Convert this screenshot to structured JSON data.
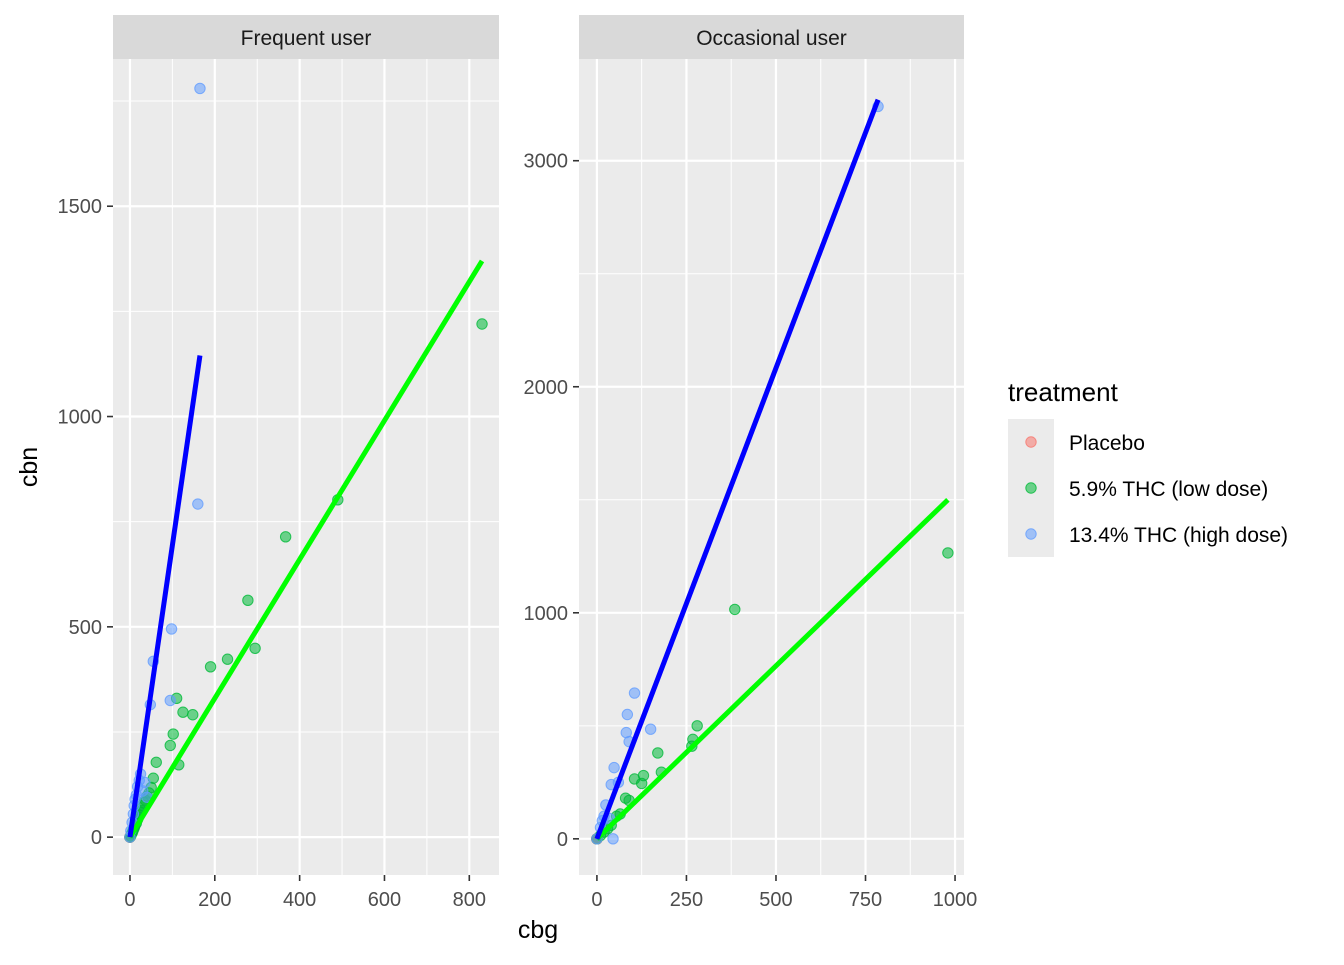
{
  "chart_data": {
    "type": "scatter",
    "facet_variable": "user group",
    "xlabel": "cbg",
    "ylabel": "cbn",
    "legend": {
      "title": "treatment",
      "placement": "right",
      "entries": [
        {
          "name": "Placebo",
          "color": "#F8766D"
        },
        {
          "name": "5.9% THC (low dose)",
          "color": "#00BA38"
        },
        {
          "name": "13.4% THC (high dose)",
          "color": "#619CFF"
        }
      ]
    },
    "grid": true,
    "panels": [
      {
        "title": "Frequent user",
        "xlim": [
          -40,
          870
        ],
        "ylim": [
          -90,
          1850
        ],
        "xticks": [
          0,
          200,
          400,
          600,
          800
        ],
        "yticks": [
          0,
          500,
          1000,
          1500
        ],
        "series": [
          {
            "name": "Placebo",
            "points": [
              [
                0,
                0
              ],
              [
                0,
                0
              ],
              [
                0,
                0
              ],
              [
                0,
                0
              ],
              [
                0,
                0
              ]
            ]
          },
          {
            "name": "5.9% THC (low dose)",
            "points": [
              [
                0,
                0
              ],
              [
                2,
                3
              ],
              [
                4,
                8
              ],
              [
                6,
                12
              ],
              [
                8,
                18
              ],
              [
                10,
                22
              ],
              [
                12,
                28
              ],
              [
                15,
                33
              ],
              [
                18,
                42
              ],
              [
                20,
                48
              ],
              [
                22,
                52
              ],
              [
                25,
                58
              ],
              [
                28,
                63
              ],
              [
                30,
                75
              ],
              [
                33,
                82
              ],
              [
                36,
                88
              ],
              [
                40,
                97
              ],
              [
                45,
                105
              ],
              [
                50,
                118
              ],
              [
                55,
                140
              ],
              [
                62,
                178
              ],
              [
                95,
                218
              ],
              [
                102,
                245
              ],
              [
                110,
                330
              ],
              [
                115,
                172
              ],
              [
                125,
                297
              ],
              [
                148,
                291
              ],
              [
                190,
                405
              ],
              [
                230,
                423
              ],
              [
                278,
                563
              ],
              [
                295,
                449
              ],
              [
                367,
                714
              ],
              [
                490,
                802
              ],
              [
                830,
                1220
              ]
            ]
          },
          {
            "name": "13.4% THC (high dose)",
            "points": [
              [
                0,
                0
              ],
              [
                2,
                15
              ],
              [
                5,
                35
              ],
              [
                8,
                55
              ],
              [
                10,
                75
              ],
              [
                12,
                90
              ],
              [
                15,
                100
              ],
              [
                18,
                120
              ],
              [
                22,
                135
              ],
              [
                25,
                150
              ],
              [
                30,
                110
              ],
              [
                35,
                130
              ],
              [
                40,
                95
              ],
              [
                48,
                315
              ],
              [
                55,
                418
              ],
              [
                95,
                325
              ],
              [
                98,
                495
              ],
              [
                160,
                792
              ],
              [
                165,
                1780
              ]
            ]
          }
        ],
        "fits": [
          {
            "series": "5.9% THC (low dose)",
            "color": "#00FF00",
            "x": [
              0,
              830
            ],
            "y": [
              0,
              1370
            ]
          },
          {
            "series": "13.4% THC (high dose)",
            "color": "#0000FF",
            "x": [
              0,
              165
            ],
            "y": [
              0,
              1145
            ]
          }
        ]
      },
      {
        "title": "Occasional user",
        "xlim": [
          -50,
          1025
        ],
        "ylim": [
          -160,
          3450
        ],
        "xticks": [
          0,
          250,
          500,
          750,
          1000
        ],
        "yticks": [
          0,
          1000,
          2000,
          3000
        ],
        "series": [
          {
            "name": "Placebo",
            "points": [
              [
                0,
                0
              ],
              [
                0,
                0
              ],
              [
                0,
                0
              ],
              [
                0,
                0
              ],
              [
                0,
                0
              ],
              [
                0,
                0
              ]
            ]
          },
          {
            "name": "5.9% THC (low dose)",
            "points": [
              [
                0,
                0
              ],
              [
                10,
                15
              ],
              [
                20,
                30
              ],
              [
                30,
                45
              ],
              [
                40,
                60
              ],
              [
                55,
                100
              ],
              [
                65,
                110
              ],
              [
                80,
                180
              ],
              [
                90,
                170
              ],
              [
                105,
                265
              ],
              [
                125,
                245
              ],
              [
                130,
                280
              ],
              [
                170,
                380
              ],
              [
                180,
                295
              ],
              [
                265,
                410
              ],
              [
                268,
                440
              ],
              [
                280,
                500
              ],
              [
                385,
                1015
              ],
              [
                980,
                1265
              ]
            ]
          },
          {
            "name": "13.4% THC (high dose)",
            "points": [
              [
                0,
                0
              ],
              [
                10,
                50
              ],
              [
                15,
                80
              ],
              [
                20,
                100
              ],
              [
                25,
                150
              ],
              [
                35,
                90
              ],
              [
                40,
                240
              ],
              [
                45,
                0
              ],
              [
                48,
                315
              ],
              [
                60,
                250
              ],
              [
                82,
                470
              ],
              [
                85,
                550
              ],
              [
                90,
                430
              ],
              [
                105,
                645
              ],
              [
                150,
                485
              ],
              [
                785,
                3240
              ]
            ]
          }
        ],
        "fits": [
          {
            "series": "5.9% THC (low dose)",
            "color": "#00FF00",
            "x": [
              0,
              980
            ],
            "y": [
              0,
              1500
            ]
          },
          {
            "series": "13.4% THC (high dose)",
            "color": "#0000FF",
            "x": [
              0,
              785
            ],
            "y": [
              0,
              3270
            ]
          }
        ]
      }
    ]
  }
}
